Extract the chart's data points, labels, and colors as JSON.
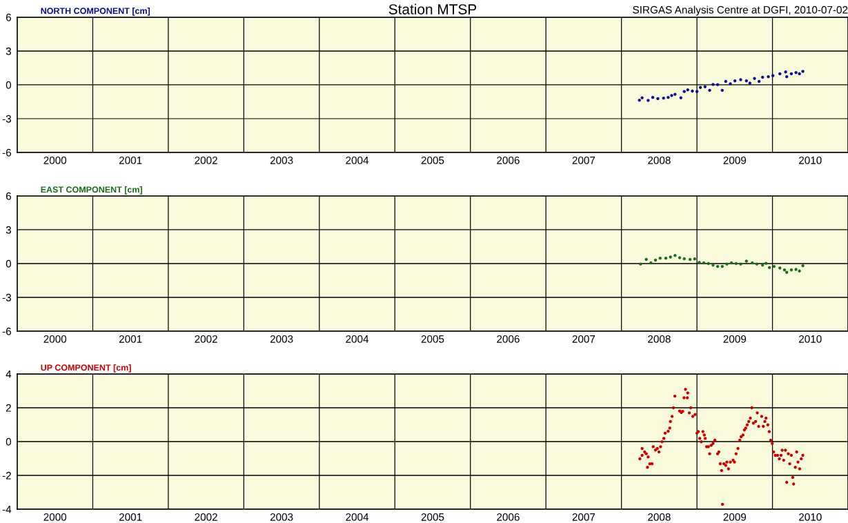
{
  "chart_data": [
    {
      "type": "scatter",
      "title": "Station MTSP",
      "ylabel": "NORTH COMPONENT [cm]",
      "annotations": [
        "SIRGAS Analysis Centre at DGFI, 2010-07-02"
      ],
      "color": "#0a0a96",
      "marker": "circle",
      "grid": true,
      "xlim": [
        2000,
        2011
      ],
      "ylim": [
        -6,
        6
      ],
      "yticks": [
        -6,
        -3,
        0,
        3,
        6
      ],
      "xticks": [
        {
          "value": 2000.5,
          "label": "2000"
        },
        {
          "value": 2001.5,
          "label": "2001"
        },
        {
          "value": 2002.5,
          "label": "2002"
        },
        {
          "value": 2003.5,
          "label": "2003"
        },
        {
          "value": 2004.5,
          "label": "2004"
        },
        {
          "value": 2005.5,
          "label": "2005"
        },
        {
          "value": 2006.5,
          "label": "2006"
        },
        {
          "value": 2007.5,
          "label": "2007"
        },
        {
          "value": 2008.5,
          "label": "2008"
        },
        {
          "value": 2009.5,
          "label": "2009"
        },
        {
          "value": 2010.5,
          "label": "2010"
        },
        {
          "value": 2001,
          "label": null
        },
        {
          "value": 2002,
          "label": null
        },
        {
          "value": 2003,
          "label": null
        },
        {
          "value": 2004,
          "label": null
        },
        {
          "value": 2005,
          "label": null
        },
        {
          "value": 2006,
          "label": null
        },
        {
          "value": 2007,
          "label": null
        },
        {
          "value": 2008,
          "label": null
        },
        {
          "value": 2009,
          "label": null
        },
        {
          "value": 2010,
          "label": null
        }
      ],
      "x": [
        2008.238,
        2008.274,
        2008.354,
        2008.415,
        2008.482,
        2008.558,
        2008.619,
        2008.665,
        2008.71,
        2008.787,
        2008.832,
        2008.878,
        2008.939,
        2009.0,
        2009.046,
        2009.107,
        2009.168,
        2009.213,
        2009.274,
        2009.335,
        2009.381,
        2009.442,
        2009.503,
        2009.579,
        2009.655,
        2009.701,
        2009.762,
        2009.823,
        2009.869,
        2009.945,
        2010.006,
        2010.098,
        2010.174,
        2010.189,
        2010.25,
        2010.311,
        2010.357,
        2010.402
      ],
      "values": [
        -1.36,
        -1.15,
        -1.38,
        -1.11,
        -1.22,
        -1.17,
        -1.11,
        -0.94,
        -0.84,
        -1.15,
        -0.59,
        -0.44,
        -0.55,
        -0.59,
        -0.23,
        -0.17,
        -0.48,
        0.04,
        0.02,
        -0.48,
        0.31,
        0.1,
        0.36,
        0.46,
        0.36,
        0.15,
        0.57,
        0.31,
        0.67,
        0.73,
        0.82,
        0.99,
        1.15,
        0.73,
        0.99,
        1.09,
        0.99,
        1.2
      ]
    },
    {
      "type": "scatter",
      "ylabel": "EAST COMPONENT [cm]",
      "color": "#1a6b1a",
      "marker": "circle",
      "grid": true,
      "xlim": [
        2000,
        2011
      ],
      "ylim": [
        -6,
        6
      ],
      "yticks": [
        -6,
        -3,
        0,
        3,
        6
      ],
      "xticks": [
        {
          "value": 2000.5,
          "label": "2000"
        },
        {
          "value": 2001.5,
          "label": "2001"
        },
        {
          "value": 2002.5,
          "label": "2002"
        },
        {
          "value": 2003.5,
          "label": "2003"
        },
        {
          "value": 2004.5,
          "label": "2004"
        },
        {
          "value": 2005.5,
          "label": "2005"
        },
        {
          "value": 2006.5,
          "label": "2006"
        },
        {
          "value": 2007.5,
          "label": "2007"
        },
        {
          "value": 2008.5,
          "label": "2008"
        },
        {
          "value": 2009.5,
          "label": "2009"
        },
        {
          "value": 2010.5,
          "label": "2010"
        },
        {
          "value": 2001,
          "label": null
        },
        {
          "value": 2002,
          "label": null
        },
        {
          "value": 2003,
          "label": null
        },
        {
          "value": 2004,
          "label": null
        },
        {
          "value": 2005,
          "label": null
        },
        {
          "value": 2006,
          "label": null
        },
        {
          "value": 2007,
          "label": null
        },
        {
          "value": 2008,
          "label": null
        },
        {
          "value": 2009,
          "label": null
        },
        {
          "value": 2010,
          "label": null
        }
      ],
      "x": [
        2008.253,
        2008.329,
        2008.39,
        2008.451,
        2008.512,
        2008.588,
        2008.649,
        2008.71,
        2008.771,
        2008.832,
        2008.909,
        2008.97,
        2009.03,
        2009.091,
        2009.152,
        2009.213,
        2009.274,
        2009.335,
        2009.396,
        2009.457,
        2009.518,
        2009.579,
        2009.655,
        2009.732,
        2009.793,
        2009.869,
        2009.915,
        2009.96,
        2010.021,
        2010.098,
        2010.159,
        2010.189,
        2010.25,
        2010.311,
        2010.357,
        2010.402
      ],
      "values": [
        -0.04,
        0.37,
        0.06,
        0.31,
        0.48,
        0.48,
        0.58,
        0.72,
        0.52,
        0.43,
        0.37,
        0.41,
        0.1,
        0.06,
        0.0,
        -0.14,
        -0.25,
        -0.25,
        -0.04,
        0.06,
        0.0,
        -0.04,
        0.21,
        0.06,
        -0.04,
        -0.14,
        0.02,
        -0.35,
        -0.25,
        -0.39,
        -0.56,
        -0.77,
        -0.56,
        -0.52,
        -0.66,
        -0.19
      ]
    },
    {
      "type": "scatter",
      "ylabel": "UP COMPONENT [cm]",
      "color": "#cc0000",
      "marker": "circle",
      "grid": true,
      "xlim": [
        2000,
        2011
      ],
      "ylim": [
        -4,
        4
      ],
      "yticks": [
        -4,
        -2,
        0,
        2,
        4
      ],
      "xticks": [
        {
          "value": 2000.5,
          "label": "2000"
        },
        {
          "value": 2001.5,
          "label": "2001"
        },
        {
          "value": 2002.5,
          "label": "2002"
        },
        {
          "value": 2003.5,
          "label": "2003"
        },
        {
          "value": 2004.5,
          "label": "2004"
        },
        {
          "value": 2005.5,
          "label": "2005"
        },
        {
          "value": 2006.5,
          "label": "2006"
        },
        {
          "value": 2007.5,
          "label": "2007"
        },
        {
          "value": 2008.5,
          "label": "2008"
        },
        {
          "value": 2009.5,
          "label": "2009"
        },
        {
          "value": 2010.5,
          "label": "2010"
        },
        {
          "value": 2001,
          "label": null
        },
        {
          "value": 2002,
          "label": null
        },
        {
          "value": 2003,
          "label": null
        },
        {
          "value": 2004,
          "label": null
        },
        {
          "value": 2005,
          "label": null
        },
        {
          "value": 2006,
          "label": null
        },
        {
          "value": 2007,
          "label": null
        },
        {
          "value": 2008,
          "label": null
        },
        {
          "value": 2009,
          "label": null
        },
        {
          "value": 2010,
          "label": null
        }
      ],
      "x": [
        2008.244,
        2008.274,
        2008.274,
        2008.308,
        2008.329,
        2008.354,
        2008.345,
        2008.375,
        2008.405,
        2008.421,
        2008.451,
        2008.476,
        2008.497,
        2008.518,
        2008.537,
        2008.561,
        2008.579,
        2008.619,
        2008.64,
        2008.649,
        2008.671,
        2008.689,
        2008.707,
        2008.771,
        2008.793,
        2008.811,
        2008.829,
        2008.848,
        2008.872,
        2008.878,
        2008.899,
        2008.918,
        2008.945,
        2008.976,
        2009.0,
        2009.018,
        2009.037,
        2009.058,
        2009.079,
        2009.098,
        2009.11,
        2009.128,
        2009.152,
        2009.168,
        2009.189,
        2009.213,
        2009.238,
        2009.274,
        2009.29,
        2009.308,
        2009.326,
        2009.338,
        2009.357,
        2009.381,
        2009.396,
        2009.418,
        2009.442,
        2009.479,
        2009.497,
        2009.518,
        2009.543,
        2009.567,
        2009.585,
        2009.61,
        2009.628,
        2009.646,
        2009.665,
        2009.686,
        2009.707,
        2009.726,
        2009.747,
        2009.777,
        2009.799,
        2009.817,
        2009.857,
        2009.878,
        2009.899,
        2009.915,
        2009.939,
        2009.957,
        2009.976,
        2009.997,
        2010.015,
        2010.037,
        2010.067,
        2010.091,
        2010.113,
        2010.128,
        2010.149,
        2010.171,
        2010.189,
        2010.21,
        2010.229,
        2010.25,
        2010.268,
        2010.28,
        2010.302,
        2010.32,
        2010.338,
        2010.36,
        2010.381,
        2010.402
      ],
      "values": [
        -1.02,
        -0.41,
        -0.81,
        -0.61,
        -0.72,
        -0.91,
        -1.52,
        -1.31,
        -1.31,
        -0.3,
        -0.5,
        -0.41,
        -0.61,
        -0.3,
        -0.01,
        0.19,
        0.5,
        0.61,
        0.8,
        1.19,
        1.49,
        2.0,
        2.69,
        1.81,
        1.72,
        1.79,
        2.59,
        3.09,
        2.59,
        2.88,
        1.7,
        2.0,
        1.49,
        1.6,
        0.5,
        0.59,
        0.19,
        -0.01,
        0.59,
        0.39,
        0.19,
        -0.3,
        -0.3,
        -0.72,
        -0.22,
        -0.11,
        0.08,
        -0.72,
        -0.61,
        -1.31,
        -1.71,
        -3.71,
        -1.31,
        -1.41,
        -1.21,
        -1.61,
        -1.21,
        -1.1,
        -1.21,
        -0.72,
        -0.41,
        0.08,
        0.29,
        0.39,
        0.69,
        0.8,
        0.99,
        1.19,
        1.39,
        2.0,
        1.09,
        1.19,
        1.7,
        0.9,
        1.49,
        0.9,
        1.19,
        1.39,
        0.99,
        0.59,
        0.08,
        -0.11,
        -0.61,
        -0.81,
        -0.81,
        -1.02,
        -0.81,
        -0.51,
        -1.1,
        -0.51,
        -2.41,
        -0.72,
        -1.31,
        -0.81,
        -2.12,
        -2.51,
        -1.52,
        -0.61,
        -1.21,
        -1.61,
        -1.02,
        -0.81
      ]
    }
  ]
}
